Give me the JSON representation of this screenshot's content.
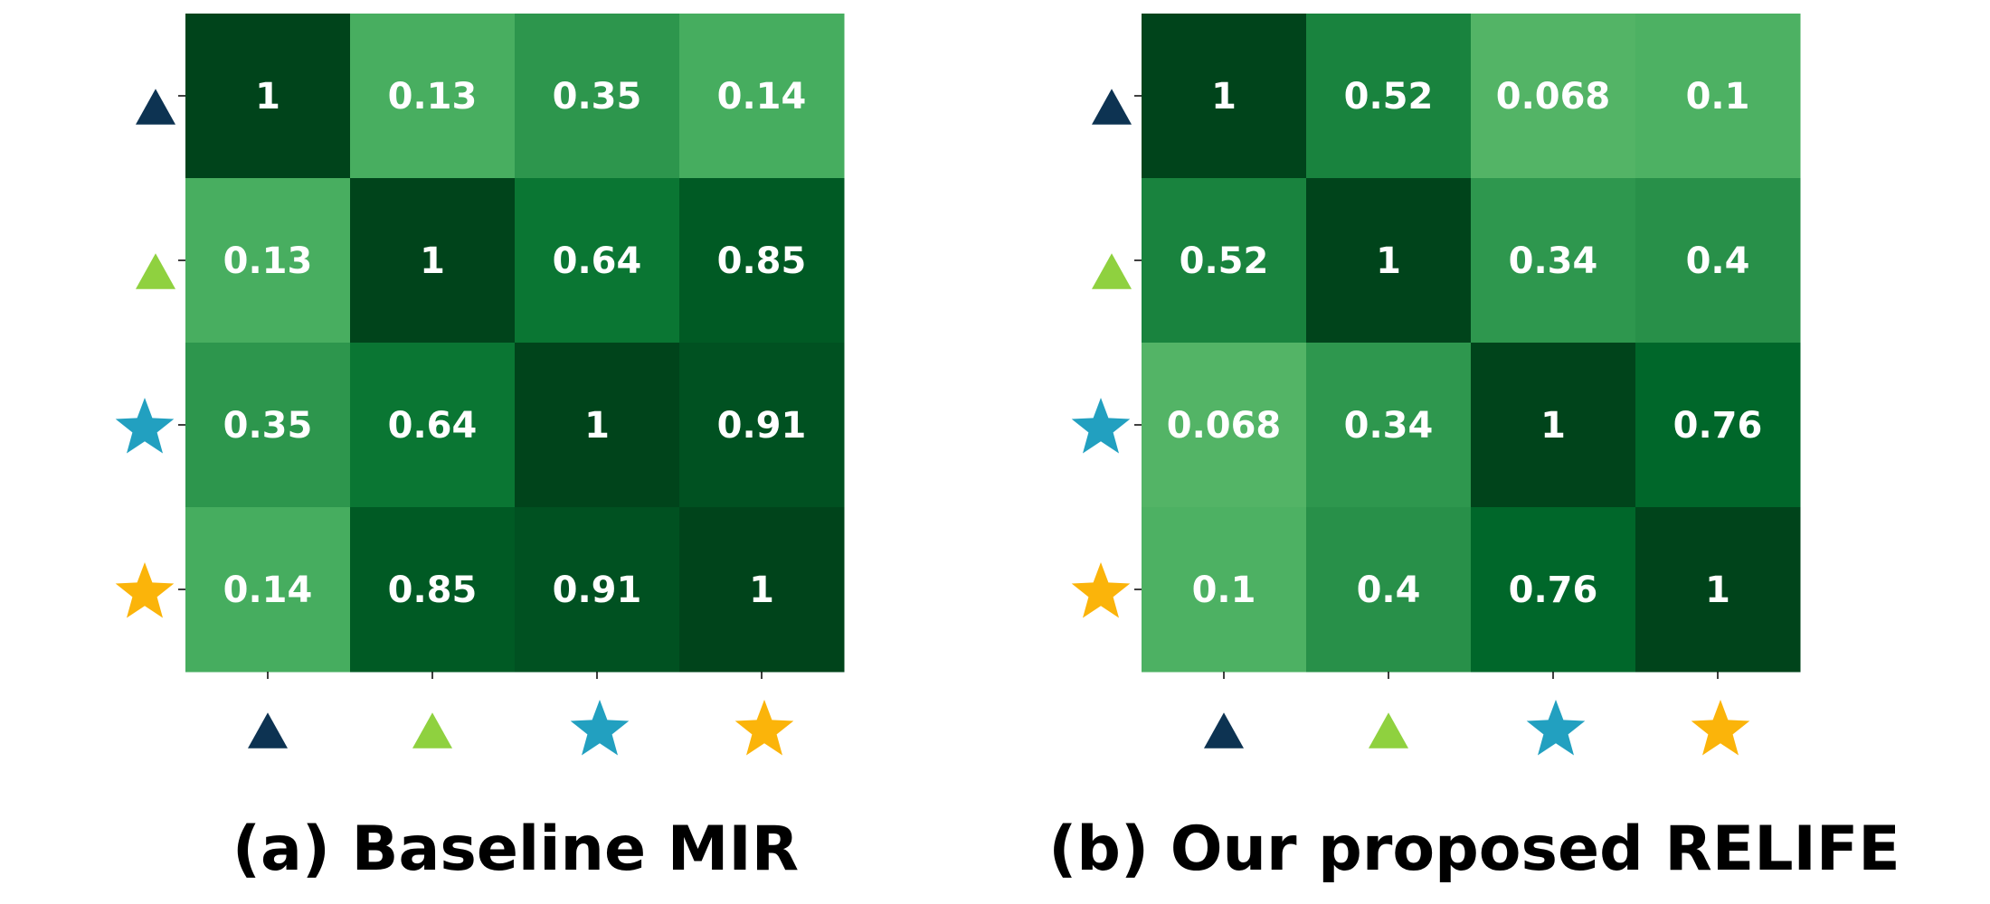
{
  "chart_data": [
    {
      "type": "heatmap",
      "title": "(a) Baseline MIR",
      "x_tick_markers": [
        {
          "shape": "triangle",
          "color": "#0d3352"
        },
        {
          "shape": "triangle",
          "color": "#8fd13f"
        },
        {
          "shape": "star",
          "color": "#22a0c0"
        },
        {
          "shape": "star",
          "color": "#fbb40a"
        }
      ],
      "y_tick_markers": [
        {
          "shape": "triangle",
          "color": "#0d3352"
        },
        {
          "shape": "triangle",
          "color": "#8fd13f"
        },
        {
          "shape": "star",
          "color": "#22a0c0"
        },
        {
          "shape": "star",
          "color": "#fbb40a"
        }
      ],
      "values": [
        [
          "1",
          "0.13",
          "0.35",
          "0.14"
        ],
        [
          "0.13",
          "1",
          "0.64",
          "0.85"
        ],
        [
          "0.35",
          "0.64",
          "1",
          "0.91"
        ],
        [
          "0.14",
          "0.85",
          "0.91",
          "1"
        ]
      ],
      "colormap": "Greens",
      "annotation_color": "#ffffff",
      "colorbar": false
    },
    {
      "type": "heatmap",
      "title": "(b) Our proposed RELIFE",
      "x_tick_markers": [
        {
          "shape": "triangle",
          "color": "#0d3352"
        },
        {
          "shape": "triangle",
          "color": "#8fd13f"
        },
        {
          "shape": "star",
          "color": "#22a0c0"
        },
        {
          "shape": "star",
          "color": "#fbb40a"
        }
      ],
      "y_tick_markers": [
        {
          "shape": "triangle",
          "color": "#0d3352"
        },
        {
          "shape": "triangle",
          "color": "#8fd13f"
        },
        {
          "shape": "star",
          "color": "#22a0c0"
        },
        {
          "shape": "star",
          "color": "#fbb40a"
        }
      ],
      "values": [
        [
          "1",
          "0.52",
          "0.068",
          "0.1"
        ],
        [
          "0.52",
          "1",
          "0.34",
          "0.4"
        ],
        [
          "0.068",
          "0.34",
          "1",
          "0.76"
        ],
        [
          "0.1",
          "0.4",
          "0.76",
          "1"
        ]
      ],
      "colormap": "Greens",
      "annotation_color": "#ffffff",
      "colorbar": false
    }
  ]
}
